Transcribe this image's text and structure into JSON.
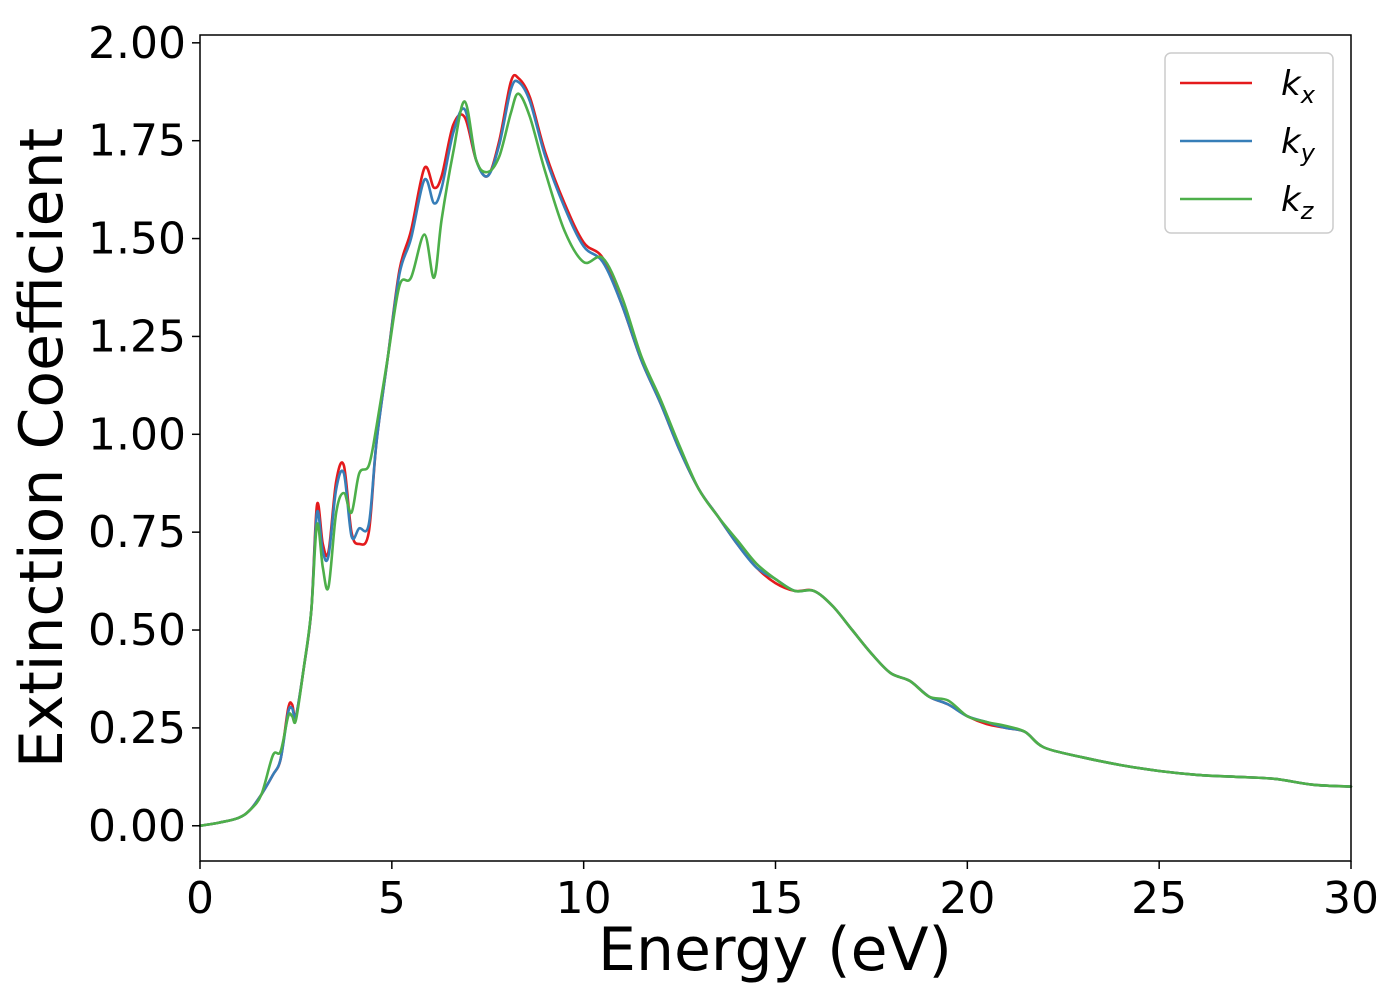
{
  "chart_data": {
    "type": "line",
    "xlabel": "Energy (eV)",
    "ylabel": "Extinction Coefficient",
    "xlim": [
      0,
      30
    ],
    "ylim": [
      -0.09,
      2.02
    ],
    "xticks": [
      0,
      5,
      10,
      15,
      20,
      25,
      30
    ],
    "xtick_labels": [
      "0",
      "5",
      "10",
      "15",
      "20",
      "25",
      "30"
    ],
    "yticks": [
      0.0,
      0.25,
      0.5,
      0.75,
      1.0,
      1.25,
      1.5,
      1.75,
      2.0
    ],
    "ytick_labels": [
      "0.00",
      "0.25",
      "0.50",
      "0.75",
      "1.00",
      "1.25",
      "1.50",
      "1.75",
      "2.00"
    ],
    "grid": false,
    "legend_position": "top-right",
    "series": [
      {
        "name": "k_x",
        "label_base": "k",
        "label_sub": "x",
        "color": "#e41a1c",
        "x": [
          0,
          0.5,
          1.0,
          1.3,
          1.6,
          1.9,
          2.1,
          2.3,
          2.4,
          2.5,
          2.7,
          2.9,
          3.05,
          3.2,
          3.35,
          3.55,
          3.75,
          3.95,
          4.15,
          4.4,
          4.6,
          4.9,
          5.2,
          5.5,
          5.85,
          6.1,
          6.3,
          6.6,
          6.9,
          7.2,
          7.5,
          7.8,
          8.1,
          8.3,
          8.6,
          9.0,
          9.5,
          10.0,
          10.5,
          11.0,
          11.5,
          12.0,
          12.5,
          13.0,
          13.5,
          14.0,
          14.5,
          15.0,
          15.5,
          16.0,
          16.5,
          17.0,
          17.5,
          18.0,
          18.5,
          19.0,
          19.5,
          20.0,
          20.5,
          21.0,
          21.5,
          22.0,
          23.0,
          24.0,
          25.0,
          26.0,
          27.0,
          28.0,
          29.0,
          30.0
        ],
        "y": [
          0.0,
          0.008,
          0.02,
          0.04,
          0.08,
          0.13,
          0.17,
          0.3,
          0.31,
          0.28,
          0.4,
          0.55,
          0.82,
          0.72,
          0.7,
          0.88,
          0.92,
          0.75,
          0.72,
          0.75,
          0.98,
          1.2,
          1.42,
          1.52,
          1.68,
          1.63,
          1.66,
          1.79,
          1.81,
          1.7,
          1.66,
          1.75,
          1.9,
          1.91,
          1.86,
          1.72,
          1.59,
          1.49,
          1.45,
          1.33,
          1.19,
          1.08,
          0.96,
          0.86,
          0.79,
          0.72,
          0.66,
          0.62,
          0.6,
          0.6,
          0.56,
          0.5,
          0.44,
          0.39,
          0.37,
          0.33,
          0.31,
          0.28,
          0.26,
          0.25,
          0.24,
          0.2,
          0.175,
          0.155,
          0.14,
          0.13,
          0.125,
          0.12,
          0.105,
          0.1
        ]
      },
      {
        "name": "k_y",
        "label_base": "k",
        "label_sub": "y",
        "color": "#377eb8",
        "x": [
          0,
          0.5,
          1.0,
          1.3,
          1.6,
          1.9,
          2.1,
          2.3,
          2.4,
          2.5,
          2.7,
          2.9,
          3.05,
          3.2,
          3.35,
          3.55,
          3.75,
          3.95,
          4.15,
          4.4,
          4.6,
          4.9,
          5.2,
          5.5,
          5.85,
          6.1,
          6.3,
          6.6,
          6.9,
          7.2,
          7.5,
          7.8,
          8.1,
          8.3,
          8.6,
          9.0,
          9.5,
          10.0,
          10.5,
          11.0,
          11.5,
          12.0,
          12.5,
          13.0,
          13.5,
          14.0,
          14.5,
          15.0,
          15.5,
          16.0,
          16.5,
          17.0,
          17.5,
          18.0,
          18.5,
          19.0,
          19.5,
          20.0,
          20.5,
          21.0,
          21.5,
          22.0,
          23.0,
          24.0,
          25.0,
          26.0,
          27.0,
          28.0,
          29.0,
          30.0
        ],
        "y": [
          0.0,
          0.008,
          0.02,
          0.04,
          0.08,
          0.13,
          0.17,
          0.29,
          0.3,
          0.28,
          0.4,
          0.55,
          0.8,
          0.7,
          0.69,
          0.86,
          0.9,
          0.74,
          0.76,
          0.77,
          0.98,
          1.2,
          1.41,
          1.5,
          1.65,
          1.59,
          1.63,
          1.77,
          1.83,
          1.7,
          1.66,
          1.74,
          1.88,
          1.9,
          1.85,
          1.71,
          1.58,
          1.48,
          1.44,
          1.33,
          1.19,
          1.08,
          0.96,
          0.86,
          0.79,
          0.72,
          0.66,
          0.63,
          0.6,
          0.6,
          0.56,
          0.5,
          0.44,
          0.39,
          0.37,
          0.33,
          0.31,
          0.28,
          0.265,
          0.25,
          0.24,
          0.2,
          0.175,
          0.155,
          0.14,
          0.13,
          0.125,
          0.12,
          0.105,
          0.1
        ]
      },
      {
        "name": "k_z",
        "label_base": "k",
        "label_sub": "z",
        "color": "#4daf4a",
        "x": [
          0,
          0.5,
          1.0,
          1.3,
          1.6,
          1.9,
          2.1,
          2.3,
          2.4,
          2.5,
          2.7,
          2.9,
          3.05,
          3.2,
          3.35,
          3.55,
          3.75,
          3.95,
          4.15,
          4.4,
          4.6,
          4.9,
          5.2,
          5.5,
          5.85,
          6.1,
          6.3,
          6.6,
          6.9,
          7.2,
          7.5,
          7.8,
          8.1,
          8.3,
          8.6,
          9.0,
          9.5,
          10.0,
          10.5,
          11.0,
          11.5,
          12.0,
          12.5,
          13.0,
          13.5,
          14.0,
          14.5,
          15.0,
          15.5,
          16.0,
          16.5,
          17.0,
          17.5,
          18.0,
          18.5,
          19.0,
          19.5,
          20.0,
          20.5,
          21.0,
          21.5,
          22.0,
          23.0,
          24.0,
          25.0,
          26.0,
          27.0,
          28.0,
          29.0,
          30.0
        ],
        "y": [
          0.0,
          0.008,
          0.02,
          0.04,
          0.08,
          0.18,
          0.19,
          0.28,
          0.28,
          0.27,
          0.4,
          0.55,
          0.77,
          0.66,
          0.61,
          0.8,
          0.85,
          0.8,
          0.9,
          0.92,
          1.02,
          1.2,
          1.38,
          1.4,
          1.51,
          1.4,
          1.55,
          1.72,
          1.85,
          1.7,
          1.67,
          1.71,
          1.82,
          1.87,
          1.81,
          1.67,
          1.52,
          1.44,
          1.45,
          1.35,
          1.2,
          1.09,
          0.97,
          0.86,
          0.79,
          0.73,
          0.67,
          0.63,
          0.6,
          0.6,
          0.56,
          0.5,
          0.44,
          0.39,
          0.37,
          0.33,
          0.32,
          0.28,
          0.265,
          0.255,
          0.24,
          0.2,
          0.175,
          0.155,
          0.14,
          0.13,
          0.125,
          0.12,
          0.105,
          0.1
        ]
      }
    ]
  }
}
